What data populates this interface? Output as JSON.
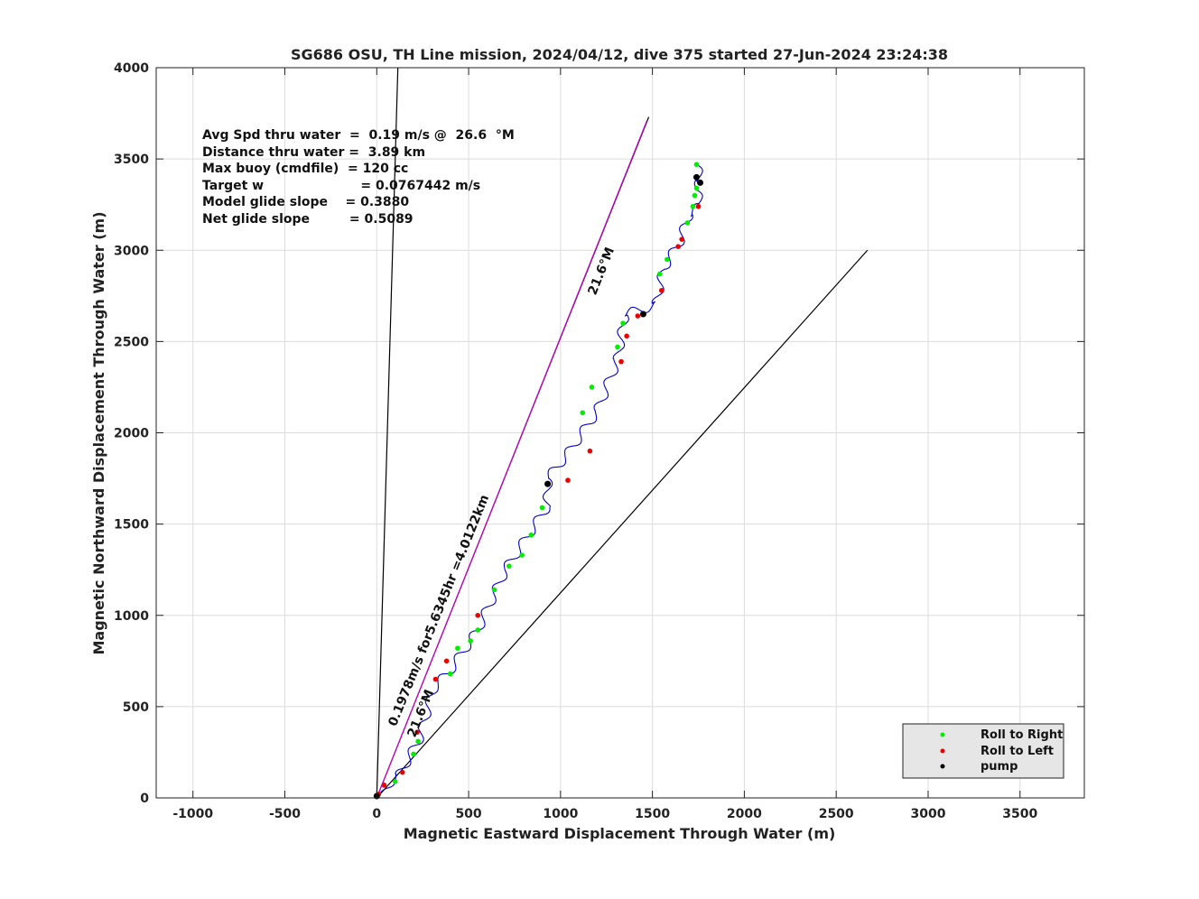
{
  "chart_data": {
    "type": "line",
    "title": "SG686 OSU, TH Line mission, 2024/04/12, dive 375 started 27-Jun-2024 23:24:38",
    "xlabel": "Magnetic Eastward Displacement Through Water (m)",
    "ylabel": "Magnetic Northward Displacement Through Water (m)",
    "xlim": [
      -1200,
      3850
    ],
    "ylim": [
      0,
      4000
    ],
    "xticks": [
      -1000,
      -500,
      0,
      500,
      1000,
      1500,
      2000,
      2500,
      3000,
      3500
    ],
    "yticks": [
      0,
      500,
      1000,
      1500,
      2000,
      2500,
      3000,
      3500,
      4000
    ],
    "grid": true,
    "stats": [
      "Avg Spd thru water  =  0.19 m/s @  26.6  °M",
      "Distance thru water =  3.89 km",
      "Max buoy (cmdfile)  = 120 cc",
      "Target w                      = 0.0767442 m/s",
      "Model glide slope    = 0.3880",
      "Net glide slope         = 0.5089"
    ],
    "annotations": {
      "heading_upper": "21.6°M",
      "heading_lower": "21.6°M",
      "course": "0.1978m/s for5.6345hr =4.0122km"
    },
    "reference_lines": [
      {
        "from": [
          0,
          0
        ],
        "to": [
          115,
          4000
        ],
        "color": "#000000"
      },
      {
        "from": [
          0,
          0
        ],
        "to": [
          1480,
          3730
        ],
        "color": "#000000"
      },
      {
        "from": [
          0,
          0
        ],
        "to": [
          1470,
          3710
        ],
        "color": "#cc00cc"
      },
      {
        "from": [
          0,
          0
        ],
        "to": [
          2670,
          3000
        ],
        "color": "#000000"
      }
    ],
    "track": {
      "color": "#0000cc",
      "anchors": [
        [
          0,
          0
        ],
        [
          120,
          120
        ],
        [
          230,
          320
        ],
        [
          310,
          600
        ],
        [
          400,
          700
        ],
        [
          550,
          920
        ],
        [
          700,
          1250
        ],
        [
          930,
          1600
        ],
        [
          930,
          1750
        ],
        [
          1050,
          1900
        ],
        [
          1200,
          2120
        ],
        [
          1310,
          2400
        ],
        [
          1350,
          2650
        ],
        [
          1520,
          2700
        ],
        [
          1560,
          2900
        ],
        [
          1650,
          3050
        ],
        [
          1700,
          3200
        ],
        [
          1760,
          3240
        ],
        [
          1740,
          3330
        ],
        [
          1760,
          3380
        ],
        [
          1740,
          3470
        ]
      ],
      "wiggle_amplitude": 25,
      "wiggle_cycles": 28
    },
    "series": [
      {
        "name": "Roll to Right",
        "color": "#00ee00",
        "points": [
          [
            100,
            90
          ],
          [
            225,
            310
          ],
          [
            200,
            240
          ],
          [
            400,
            680
          ],
          [
            440,
            820
          ],
          [
            510,
            860
          ],
          [
            550,
            920
          ],
          [
            640,
            1140
          ],
          [
            720,
            1270
          ],
          [
            790,
            1330
          ],
          [
            840,
            1440
          ],
          [
            900,
            1590
          ],
          [
            1120,
            2110
          ],
          [
            1170,
            2250
          ],
          [
            1310,
            2470
          ],
          [
            1340,
            2600
          ],
          [
            1540,
            2870
          ],
          [
            1580,
            2950
          ],
          [
            1690,
            3150
          ],
          [
            1720,
            3240
          ],
          [
            1730,
            3300
          ],
          [
            1740,
            3340
          ],
          [
            1740,
            3470
          ]
        ]
      },
      {
        "name": "Roll to Left",
        "color": "#ee0000",
        "points": [
          [
            10,
            20
          ],
          [
            40,
            70
          ],
          [
            140,
            140
          ],
          [
            220,
            360
          ],
          [
            380,
            750
          ],
          [
            320,
            650
          ],
          [
            550,
            1000
          ],
          [
            1040,
            1740
          ],
          [
            1160,
            1900
          ],
          [
            1330,
            2390
          ],
          [
            1360,
            2530
          ],
          [
            1420,
            2640
          ],
          [
            1550,
            2780
          ],
          [
            1640,
            3020
          ],
          [
            1660,
            3060
          ],
          [
            1750,
            3240
          ]
        ]
      },
      {
        "name": "pump",
        "color": "#000000",
        "points": [
          [
            0,
            10
          ],
          [
            930,
            1720
          ],
          [
            1450,
            2650
          ],
          [
            1760,
            3370
          ],
          [
            1740,
            3400
          ]
        ]
      }
    ]
  }
}
